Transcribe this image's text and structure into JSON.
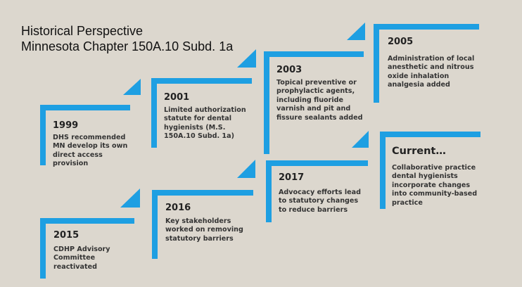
{
  "header": {
    "line1": "Historical Perspective",
    "line2": "Minnesota Chapter 150A.10 Subd. 1a"
  },
  "colors": {
    "accent": "#1e9fe2",
    "background": "#dcd7ce"
  },
  "timeline_top": [
    {
      "year": "1999",
      "text": "DHS recommended MN develop its own direct access provision"
    },
    {
      "year": "2001",
      "text": "Limited authorization statute for dental hygienists (M.S. 150A.10 Subd. 1a)"
    },
    {
      "year": "2003",
      "text": "Topical preventive or prophylactic agents, including fluoride varnish and pit and fissure sealants added"
    },
    {
      "year": "2005",
      "text": "Administration of local anesthetic and nitrous oxide inhalation analgesia added"
    }
  ],
  "timeline_bottom": [
    {
      "year": "2015",
      "text": "CDHP Advisory Committee reactivated"
    },
    {
      "year": "2016",
      "text": "Key stakeholders worked on removing statutory barriers"
    },
    {
      "year": "2017",
      "text": "Advocacy efforts lead to statutory changes to reduce barriers"
    },
    {
      "year": "Current…",
      "text": "Collaborative practice dental hygienists incorporate changes into community-based practice"
    }
  ]
}
